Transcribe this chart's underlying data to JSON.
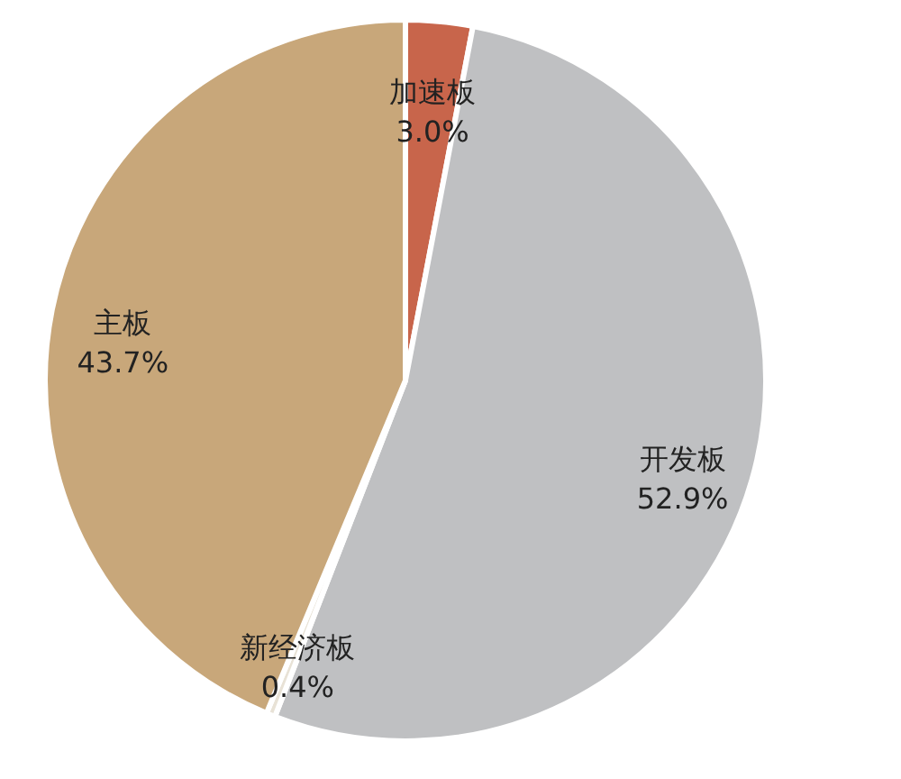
{
  "chart_data": {
    "type": "pie",
    "categories": [
      "加速板",
      "开发板",
      "新经济板",
      "主板"
    ],
    "values": [
      3.0,
      52.9,
      0.4,
      43.7
    ],
    "colors": [
      "#c8654b",
      "#bfc0c2",
      "#e8e2d6",
      "#c8a77a"
    ],
    "value_labels": [
      "3.0%",
      "52.9%",
      "0.4%",
      "43.7%"
    ],
    "legend": false
  }
}
